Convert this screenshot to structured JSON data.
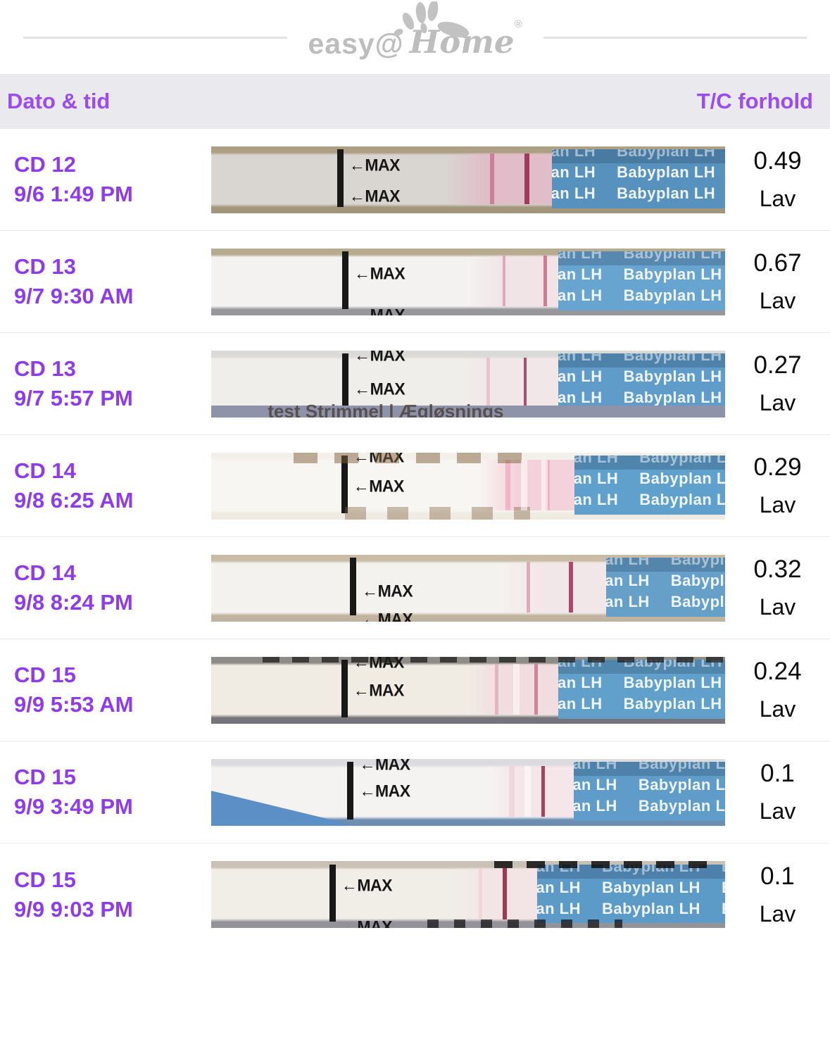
{
  "logo": {
    "prefix": "easy@",
    "suffix": "Home",
    "reg": "®"
  },
  "table": {
    "left_header": "Dato & tid",
    "right_header": "T/C forhold"
  },
  "strip_common": {
    "max_label": "←MAX",
    "handle_texts": [
      "plan LH",
      "Babyplan LH",
      "Bab"
    ]
  },
  "colors": {
    "purple_header": "#9B4BF2",
    "purple_row": "#8E3BF0",
    "bar_bg": "#EAE9ED",
    "separator": "#E6E5E9",
    "value_color": "#0B0B0B",
    "logo_gray": "#BDBDBD",
    "rule": "#E2E2E2",
    "handle_blue": "#5E9AC8"
  },
  "rows": [
    {
      "cd": "CD 12",
      "datetime": "9/6 1:49 PM",
      "ratio": "0.49",
      "level": "Lav",
      "strip": {
        "bg_top": "#AC9F83",
        "body": "#D9D6D2",
        "bg_bottom": "#A1957B",
        "bar": 24.5,
        "max1": 14,
        "max2": 60,
        "wet": 45,
        "wet_color": "rgba(226,183,198,0.8)",
        "test": 54.2,
        "test_w": 6,
        "test_color": "rgba(198,110,140,0.8)",
        "ctrl": 61,
        "ctrl_w": 7,
        "ctrl_color": "#A23A5F",
        "handle": 66.3,
        "handle_color": "#5792BE",
        "gaps": [],
        "decor": "none"
      }
    },
    {
      "cd": "CD 13",
      "datetime": "9/7 9:30 AM",
      "ratio": "0.67",
      "level": "Lav",
      "strip": {
        "bg_top": "#B6AA8F",
        "body": "#F3F2F0",
        "bg_bottom": "#97979B",
        "bar": 25.5,
        "max1": 24,
        "max2": 86,
        "wet": 50,
        "wet_color": "rgba(238,216,224,0.55)",
        "test": 56.7,
        "test_w": 4,
        "test_color": "rgba(223,150,175,0.8)",
        "ctrl": 64.6,
        "ctrl_w": 5,
        "ctrl_color": "rgba(205,110,140,0.9)",
        "handle": 67.6,
        "handle_color": "#68A4D0",
        "gaps": [],
        "decor": "none"
      }
    },
    {
      "cd": "CD 13",
      "datetime": "9/7 5:57 PM",
      "ratio": "0.27",
      "level": "Lav",
      "strip": {
        "bg_top": "#DADAD8",
        "body": "#F0EEEB",
        "bg_bottom": "#9196AC",
        "bar": 25.5,
        "max1": -7,
        "max2": 44,
        "wet": 48,
        "wet_color": "rgba(242,222,229,0.5)",
        "test": 53.6,
        "test_w": 5,
        "test_color": "rgba(233,180,196,0.7)",
        "ctrl": 60.8,
        "ctrl_w": 4,
        "ctrl_color": "#AA4E71",
        "handle": 67.6,
        "handle_color": "#5F9CC9",
        "gaps": [],
        "decor": "band3",
        "band_text": "test Strimmel | Ægløsnings"
      }
    },
    {
      "cd": "CD 14",
      "datetime": "9/8 6:25 AM",
      "ratio": "0.29",
      "level": "Lav",
      "strip": {
        "bg_top": "#F3F0EA",
        "body": "#F8F6F3",
        "bg_bottom": "#EFEBE3",
        "bar": 25.3,
        "max1": -8,
        "max2": 36,
        "wet": 52,
        "wet_color": "rgba(243,198,211,0.75)",
        "test": 57.3,
        "test_w": 7,
        "test_color": "rgba(240,175,194,0.85)",
        "ctrl": 65,
        "ctrl_w": 6,
        "ctrl_color": "rgba(235,170,192,0.8)",
        "handle": 70.7,
        "handle_color": "#5FA0CC",
        "gaps": [
          60.3,
          64.2
        ],
        "decor": "brown4"
      }
    },
    {
      "cd": "CD 14",
      "datetime": "9/8 8:24 PM",
      "ratio": "0.32",
      "level": "Lav",
      "strip": {
        "bg_top": "#C8BCA6",
        "body": "#F4F2EF",
        "bg_bottom": "#C0B3A0",
        "bar": 27.0,
        "max1": 40,
        "max2": 83,
        "wet": 56,
        "wet_color": "rgba(240,222,227,0.55)",
        "test": 61.4,
        "test_w": 5,
        "test_color": "rgba(219,160,180,0.85)",
        "ctrl": 69.6,
        "ctrl_w": 6,
        "ctrl_color": "#AB4A6C",
        "handle": 76.8,
        "handle_color": "#66A0C9",
        "gaps": [],
        "decor": "none"
      }
    },
    {
      "cd": "CD 15",
      "datetime": "9/9 5:53 AM",
      "ratio": "0.24",
      "level": "Lav",
      "strip": {
        "bg_top": "#8E8C86",
        "body": "#F0EBE3",
        "bg_bottom": "#76747A",
        "bar": 25.3,
        "max1": -6,
        "max2": 36,
        "wet": 50,
        "wet_color": "rgba(242,210,220,0.6)",
        "test": 55.2,
        "test_w": 5,
        "test_color": "rgba(223,170,188,0.8)",
        "ctrl": 62.9,
        "ctrl_w": 5,
        "ctrl_color": "rgba(200,125,152,0.9)",
        "handle": 67.6,
        "handle_color": "#61A0CB",
        "gaps": [
          58.8
        ],
        "decor": "dash6"
      }
    },
    {
      "cd": "CD 15",
      "datetime": "9/9 3:49 PM",
      "ratio": "0.1",
      "level": "Lav",
      "strip": {
        "bg_top": "#DCDCDE",
        "body": "#F5F3F1",
        "bg_bottom": "#6E8EB0",
        "bar": 26.5,
        "max1": -6,
        "max2": 34,
        "wet": 54,
        "wet_color": "rgba(243,219,226,0.55)",
        "test": 58,
        "test_w": 8,
        "test_color": "rgba(238,208,216,0.75)",
        "ctrl": 64.2,
        "ctrl_w": 5,
        "ctrl_color": "#A24562",
        "handle": 70.5,
        "handle_color": "#5F9CC9",
        "gaps": [
          61
        ],
        "decor": "blue7"
      }
    },
    {
      "cd": "CD 15",
      "datetime": "9/9 9:03 PM",
      "ratio": "0.1",
      "level": "Lav",
      "strip": {
        "bg_top": "#C9C2B4",
        "body": "#F1EDE7",
        "bg_bottom": "#93919A",
        "bar": 23.0,
        "max1": 22,
        "max2": 84,
        "wet": 47,
        "wet_color": "rgba(245,221,227,0.5)",
        "test": 52,
        "test_w": 5,
        "test_color": "rgba(238,203,212,0.6)",
        "ctrl": 56.7,
        "ctrl_w": 6,
        "ctrl_color": "#9E3954",
        "handle": 63.4,
        "handle_color": "#5C9AC8",
        "gaps": [],
        "decor": "dash8"
      }
    }
  ]
}
